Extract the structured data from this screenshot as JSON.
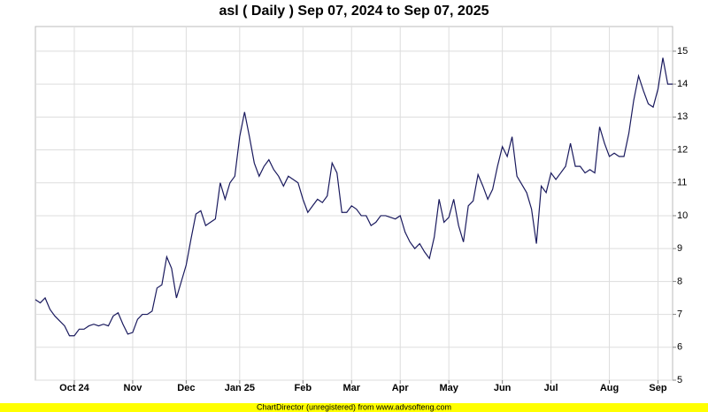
{
  "chart_data": {
    "type": "line",
    "title": "asl ( Daily ) Sep 07, 2024 to Sep 07, 2025",
    "categories": [
      null,
      null,
      null,
      null,
      null,
      null,
      null,
      null,
      "Oct 24",
      null,
      null,
      null,
      null,
      null,
      null,
      null,
      null,
      null,
      null,
      null,
      "Nov",
      null,
      null,
      null,
      null,
      null,
      null,
      null,
      null,
      null,
      null,
      "Dec",
      null,
      null,
      null,
      null,
      null,
      null,
      null,
      null,
      null,
      null,
      "Jan 25",
      null,
      null,
      null,
      null,
      null,
      null,
      null,
      null,
      null,
      null,
      null,
      null,
      "Feb",
      null,
      null,
      null,
      null,
      null,
      null,
      null,
      null,
      null,
      "Mar",
      null,
      null,
      null,
      null,
      null,
      null,
      null,
      null,
      null,
      "Apr",
      null,
      null,
      null,
      null,
      null,
      null,
      null,
      null,
      null,
      "May",
      null,
      null,
      null,
      null,
      null,
      null,
      null,
      null,
      null,
      null,
      "Jun",
      null,
      null,
      null,
      null,
      null,
      null,
      null,
      null,
      null,
      "Jul",
      null,
      null,
      null,
      null,
      null,
      null,
      null,
      null,
      null,
      null,
      null,
      "Aug",
      null,
      null,
      null,
      null,
      null,
      null,
      null,
      null,
      null,
      "Sep",
      null,
      null,
      null
    ],
    "values": [
      7.45,
      7.35,
      7.5,
      7.15,
      6.95,
      6.8,
      6.65,
      6.35,
      6.35,
      6.55,
      6.55,
      6.65,
      6.7,
      6.65,
      6.7,
      6.65,
      6.95,
      7.05,
      6.7,
      6.4,
      6.45,
      6.85,
      7.0,
      7.0,
      7.1,
      7.8,
      7.9,
      8.75,
      8.4,
      7.5,
      8.0,
      8.5,
      9.3,
      10.05,
      10.15,
      9.7,
      9.8,
      9.9,
      11.0,
      10.5,
      11.0,
      11.2,
      12.4,
      13.15,
      12.4,
      11.6,
      11.2,
      11.5,
      11.7,
      11.4,
      11.2,
      10.9,
      11.2,
      11.1,
      11.0,
      10.5,
      10.1,
      10.3,
      10.5,
      10.4,
      10.6,
      11.6,
      11.3,
      10.1,
      10.1,
      10.3,
      10.2,
      10.0,
      10.0,
      9.7,
      9.8,
      10.0,
      10.0,
      9.95,
      9.9,
      10.0,
      9.5,
      9.2,
      9.0,
      9.15,
      8.9,
      8.7,
      9.35,
      10.5,
      9.8,
      9.95,
      10.5,
      9.7,
      9.2,
      10.3,
      10.45,
      11.25,
      10.9,
      10.5,
      10.8,
      11.5,
      12.1,
      11.8,
      12.4,
      11.2,
      10.95,
      10.7,
      10.2,
      9.15,
      10.9,
      10.7,
      11.3,
      11.1,
      11.3,
      11.5,
      12.2,
      11.5,
      11.5,
      11.3,
      11.4,
      11.3,
      12.7,
      12.2,
      11.8,
      11.9,
      11.8,
      11.8,
      12.5,
      13.5,
      14.25,
      13.8,
      13.4,
      13.3,
      13.85,
      14.8,
      14.0,
      14.0
    ],
    "color": "#1a1a5e",
    "ylim": [
      5,
      15.75
    ],
    "yticks": [
      5,
      6,
      7,
      8,
      9,
      10,
      11,
      12,
      13,
      14,
      15
    ],
    "grid": true
  },
  "footer": "ChartDirector (unregistered) from www.advsofteng.com"
}
